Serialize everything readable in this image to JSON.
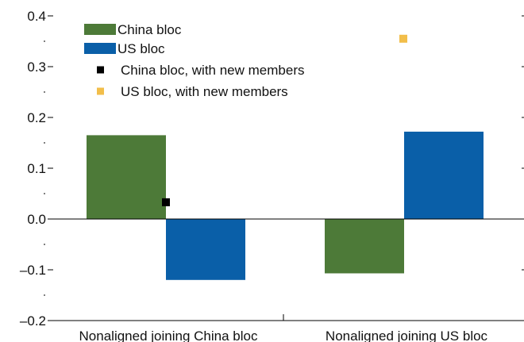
{
  "colors": {
    "china": "#4d7a38",
    "us": "#0a5fa8",
    "china_new": "#000000",
    "us_new": "#f2be4a",
    "axis": "#000000"
  },
  "chart_data": {
    "type": "bar",
    "categories": [
      "Nonaligned joining China bloc",
      "Nonaligned joining US bloc"
    ],
    "series": [
      {
        "name": "China bloc",
        "values": [
          0.165,
          -0.107
        ],
        "kind": "bar",
        "color": "#4d7a38"
      },
      {
        "name": "US bloc",
        "values": [
          -0.12,
          0.172
        ],
        "kind": "bar",
        "color": "#0a5fa8"
      },
      {
        "name": "China bloc, with new members",
        "values": [
          0.033,
          null
        ],
        "kind": "marker",
        "color": "#000000"
      },
      {
        "name": "US bloc, with new members",
        "values": [
          null,
          0.355
        ],
        "kind": "marker",
        "color": "#f2be4a"
      }
    ],
    "ylim": [
      -0.2,
      0.4
    ],
    "yticks_major": [
      0.4,
      0.3,
      0.2,
      0.1,
      0.0,
      -0.1,
      -0.2
    ],
    "ytick_labels": [
      "0.4",
      "0.3",
      "0.2",
      "0.1",
      "0.0",
      "–0.1",
      "–0.2"
    ],
    "yticks_minor": [
      0.35,
      0.25,
      0.15,
      0.05,
      -0.05,
      -0.15
    ],
    "legend_position": "top-left",
    "grid": false
  }
}
